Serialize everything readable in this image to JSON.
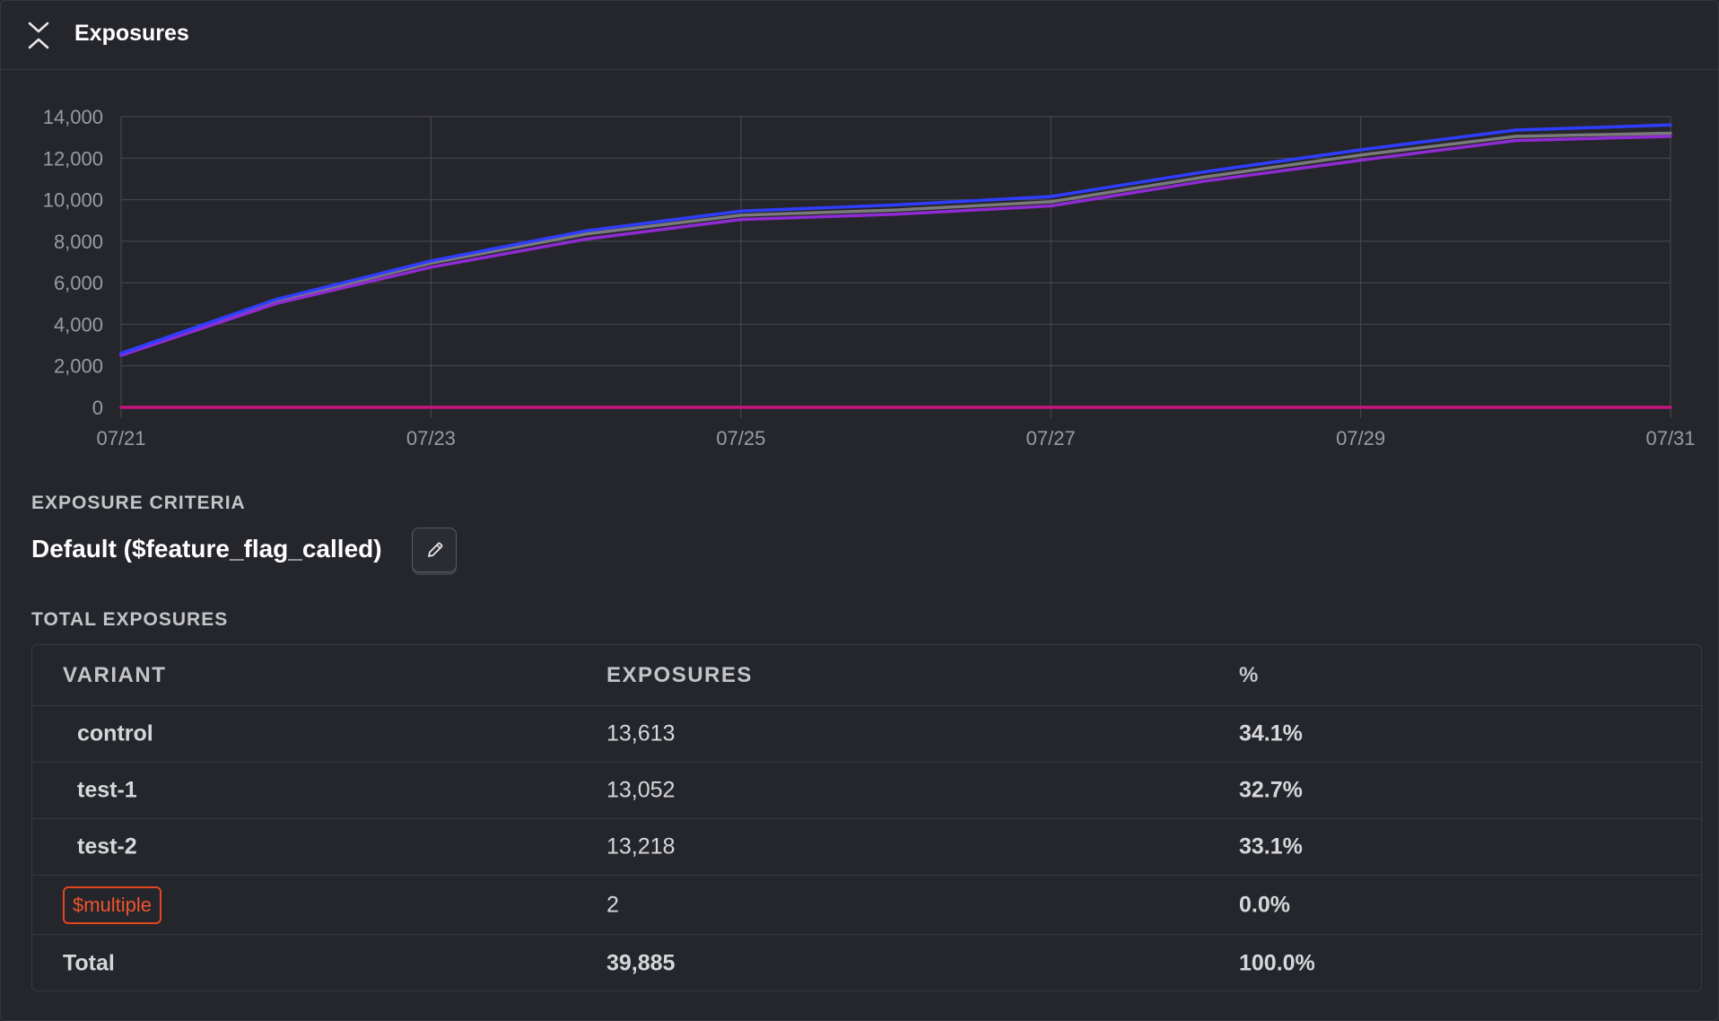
{
  "header": {
    "title": "Exposures",
    "collapse_icon": "chevrons-collapse-icon"
  },
  "chart_data": {
    "type": "line",
    "x": [
      "07/21",
      "07/22",
      "07/23",
      "07/24",
      "07/25",
      "07/26",
      "07/27",
      "07/28",
      "07/29",
      "07/30",
      "07/31"
    ],
    "x_tick_labels": [
      "07/21",
      "07/23",
      "07/25",
      "07/27",
      "07/29",
      "07/31"
    ],
    "y_tick_labels": [
      "0",
      "2,000",
      "4,000",
      "6,000",
      "8,000",
      "10,000",
      "12,000",
      "14,000"
    ],
    "ylim": [
      0,
      14000
    ],
    "grid": true,
    "series": [
      {
        "color": "#7a7a7a",
        "values": [
          2550,
          5100,
          6950,
          8350,
          9250,
          9500,
          9900,
          11100,
          12150,
          13050,
          13200
        ]
      },
      {
        "color": "#8e2bd3",
        "values": [
          2500,
          5000,
          6750,
          8100,
          9050,
          9300,
          9700,
          10900,
          11900,
          12850,
          13050
        ]
      },
      {
        "color": "#2f3dff",
        "values": [
          2600,
          5200,
          7050,
          8500,
          9450,
          9750,
          10150,
          11350,
          12400,
          13350,
          13600
        ]
      },
      {
        "color": "#c5157c",
        "values": [
          0,
          0,
          0,
          0,
          0,
          0,
          0,
          0,
          0,
          0,
          0
        ]
      }
    ]
  },
  "criteria": {
    "label": "EXPOSURE CRITERIA",
    "value": "Default ($feature_flag_called)",
    "edit_icon": "pencil-icon"
  },
  "totals": {
    "label": "TOTAL EXPOSURES",
    "headers": [
      "VARIANT",
      "EXPOSURES",
      "%"
    ],
    "rows": [
      {
        "variant": "control",
        "exposures": "13,613",
        "percent": "34.1%"
      },
      {
        "variant": "test-1",
        "exposures": "13,052",
        "percent": "32.7%"
      },
      {
        "variant": "test-2",
        "exposures": "13,218",
        "percent": "33.1%"
      },
      {
        "variant": "$multiple",
        "exposures": "2",
        "percent": "0.0%"
      }
    ],
    "total": {
      "label": "Total",
      "exposures": "39,885",
      "percent": "100.0%"
    }
  },
  "colors": {
    "background": "#25262b",
    "border": "#36383d",
    "badge": "#f0532c"
  }
}
